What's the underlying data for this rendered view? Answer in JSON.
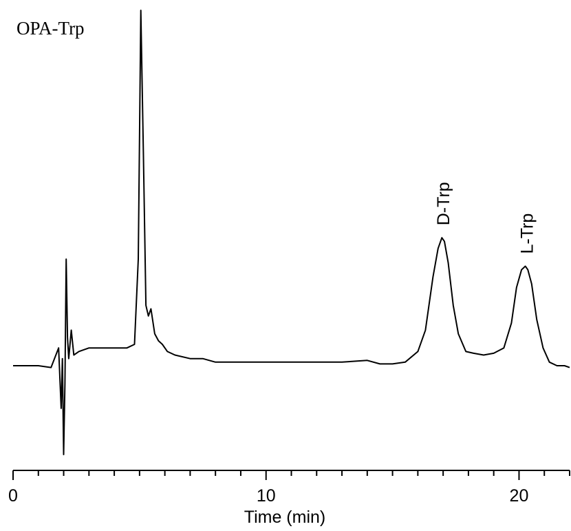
{
  "chart_data": {
    "type": "line",
    "title": "OPA-Trp",
    "xlabel": "Time (min)",
    "ylabel": "",
    "xlim": [
      0,
      22
    ],
    "major_ticks": [
      0,
      10,
      20
    ],
    "minor_tick_step": 1,
    "y_axis_shown": false,
    "grid": false,
    "series": [
      {
        "values_unit": "relative intensity (baseline = 0, tallest peak = 1)",
        "x": [
          0.0,
          0.5,
          1.0,
          1.5,
          1.8,
          1.9,
          1.95,
          2.0,
          2.05,
          2.1,
          2.15,
          2.2,
          2.3,
          2.4,
          2.6,
          3.0,
          3.5,
          4.0,
          4.5,
          4.8,
          4.95,
          5.05,
          5.15,
          5.25,
          5.35,
          5.45,
          5.6,
          5.75,
          5.9,
          6.1,
          6.4,
          7.0,
          7.5,
          8.0,
          9.0,
          10.0,
          11.0,
          12.0,
          13.0,
          14.0,
          14.5,
          15.0,
          15.5,
          16.0,
          16.3,
          16.6,
          16.8,
          16.95,
          17.05,
          17.2,
          17.4,
          17.6,
          17.9,
          18.2,
          18.6,
          19.0,
          19.4,
          19.7,
          19.9,
          20.1,
          20.25,
          20.35,
          20.5,
          20.7,
          20.95,
          21.2,
          21.5,
          21.8,
          22.0
        ],
        "y": [
          0.0,
          0.0,
          0.0,
          -0.005,
          0.05,
          -0.12,
          0.02,
          -0.25,
          -0.05,
          0.3,
          0.08,
          0.02,
          0.1,
          0.03,
          0.04,
          0.05,
          0.05,
          0.05,
          0.05,
          0.06,
          0.3,
          1.0,
          0.6,
          0.17,
          0.14,
          0.16,
          0.09,
          0.07,
          0.06,
          0.04,
          0.03,
          0.02,
          0.02,
          0.01,
          0.01,
          0.01,
          0.01,
          0.01,
          0.01,
          0.015,
          0.005,
          0.005,
          0.01,
          0.04,
          0.1,
          0.25,
          0.33,
          0.36,
          0.35,
          0.29,
          0.17,
          0.09,
          0.04,
          0.035,
          0.03,
          0.035,
          0.05,
          0.12,
          0.22,
          0.27,
          0.28,
          0.27,
          0.23,
          0.13,
          0.05,
          0.01,
          0.0,
          0.0,
          -0.005
        ]
      }
    ],
    "annotations": [
      {
        "text": "D-Trp",
        "x": 17.0,
        "y": 0.36,
        "orientation": "vertical"
      },
      {
        "text": "L-Trp",
        "x": 20.3,
        "y": 0.28,
        "orientation": "vertical"
      }
    ]
  }
}
